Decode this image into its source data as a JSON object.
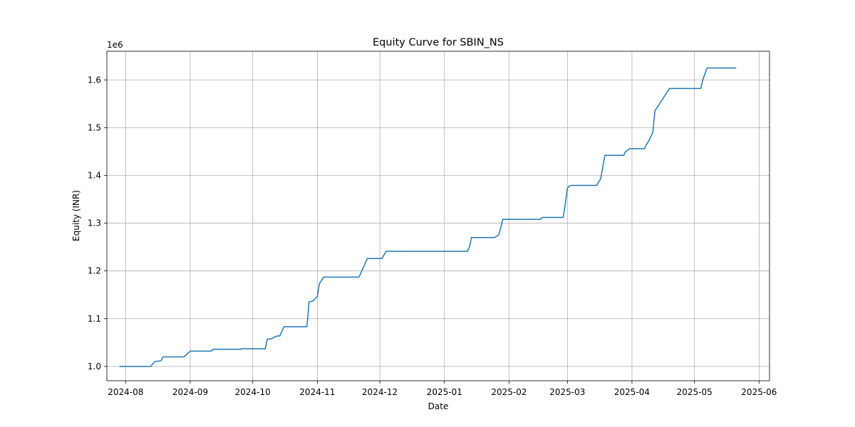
{
  "chart_data": {
    "type": "line",
    "title": "Equity Curve for SBIN_NS",
    "xlabel": "Date",
    "ylabel": "Equity (INR)",
    "y_offset_text": "1e6",
    "x_ticks": [
      "2024-08",
      "2024-09",
      "2024-10",
      "2024-11",
      "2024-12",
      "2025-01",
      "2025-02",
      "2025-03",
      "2025-04",
      "2025-05",
      "2025-06"
    ],
    "y_ticks": [
      "1.0",
      "1.1",
      "1.2",
      "1.3",
      "1.4",
      "1.5",
      "1.6"
    ],
    "xlim": [
      "2024-07-23",
      "2025-06-06"
    ],
    "ylim": [
      0.97,
      1.66
    ],
    "grid": true,
    "line_color": "#1f77b4",
    "series": [
      {
        "x": [
          "2024-07-29",
          "2024-08-13",
          "2024-08-15",
          "2024-08-18",
          "2024-08-19",
          "2024-08-29",
          "2024-09-01",
          "2024-09-11",
          "2024-09-12",
          "2024-09-25",
          "2024-09-26",
          "2024-10-07",
          "2024-10-08",
          "2024-10-10",
          "2024-10-12",
          "2024-10-14",
          "2024-10-16",
          "2024-10-27",
          "2024-10-28",
          "2024-10-30",
          "2024-11-01",
          "2024-11-02",
          "2024-11-04",
          "2024-11-21",
          "2024-11-25",
          "2024-12-02",
          "2024-12-04",
          "2025-01-12",
          "2025-01-13",
          "2025-01-14",
          "2025-01-25",
          "2025-01-27",
          "2025-01-28",
          "2025-01-29",
          "2025-02-16",
          "2025-02-17",
          "2025-02-27",
          "2025-02-28",
          "2025-03-01",
          "2025-03-02",
          "2025-03-03",
          "2025-03-15",
          "2025-03-17",
          "2025-03-19",
          "2025-03-28",
          "2025-03-29",
          "2025-03-31",
          "2025-04-07",
          "2025-04-08",
          "2025-04-09",
          "2025-04-11",
          "2025-04-12",
          "2025-04-19",
          "2025-05-04",
          "2025-05-05",
          "2025-05-07",
          "2025-05-21"
        ],
        "y": [
          1.0,
          1.0,
          1.01,
          1.012,
          1.02,
          1.02,
          1.032,
          1.032,
          1.036,
          1.036,
          1.037,
          1.037,
          1.057,
          1.058,
          1.063,
          1.064,
          1.083,
          1.083,
          1.135,
          1.137,
          1.147,
          1.173,
          1.187,
          1.187,
          1.226,
          1.226,
          1.241,
          1.241,
          1.25,
          1.27,
          1.27,
          1.275,
          1.29,
          1.308,
          1.308,
          1.312,
          1.312,
          1.34,
          1.373,
          1.378,
          1.379,
          1.379,
          1.393,
          1.442,
          1.442,
          1.45,
          1.456,
          1.456,
          1.465,
          1.472,
          1.49,
          1.535,
          1.582,
          1.582,
          1.6,
          1.625,
          1.625
        ]
      }
    ]
  }
}
